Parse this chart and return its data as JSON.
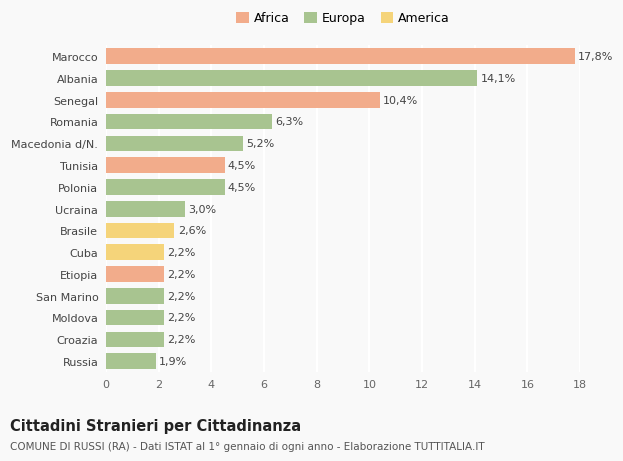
{
  "categories": [
    "Marocco",
    "Albania",
    "Senegal",
    "Romania",
    "Macedonia d/N.",
    "Tunisia",
    "Polonia",
    "Ucraina",
    "Brasile",
    "Cuba",
    "Etiopia",
    "San Marino",
    "Moldova",
    "Croazia",
    "Russia"
  ],
  "values": [
    17.8,
    14.1,
    10.4,
    6.3,
    5.2,
    4.5,
    4.5,
    3.0,
    2.6,
    2.2,
    2.2,
    2.2,
    2.2,
    2.2,
    1.9
  ],
  "labels": [
    "17,8%",
    "14,1%",
    "10,4%",
    "6,3%",
    "5,2%",
    "4,5%",
    "4,5%",
    "3,0%",
    "2,6%",
    "2,2%",
    "2,2%",
    "2,2%",
    "2,2%",
    "2,2%",
    "1,9%"
  ],
  "continent": [
    "Africa",
    "Europa",
    "Africa",
    "Europa",
    "Europa",
    "Africa",
    "Europa",
    "Europa",
    "America",
    "America",
    "Africa",
    "Europa",
    "Europa",
    "Europa",
    "Europa"
  ],
  "colors": {
    "Africa": "#F2AC8B",
    "Europa": "#A8C490",
    "America": "#F5D47A"
  },
  "legend_items": [
    "Africa",
    "Europa",
    "America"
  ],
  "legend_colors": [
    "#F2AC8B",
    "#A8C490",
    "#F5D47A"
  ],
  "xlim": [
    0,
    18
  ],
  "xticks": [
    0,
    2,
    4,
    6,
    8,
    10,
    12,
    14,
    16,
    18
  ],
  "title": "Cittadini Stranieri per Cittadinanza",
  "subtitle": "COMUNE DI RUSSI (RA) - Dati ISTAT al 1° gennaio di ogni anno - Elaborazione TUTTITALIA.IT",
  "background_color": "#f9f9f9",
  "grid_color": "#ffffff",
  "bar_height": 0.72,
  "label_fontsize": 8,
  "tick_fontsize": 8,
  "title_fontsize": 10.5,
  "subtitle_fontsize": 7.5,
  "legend_fontsize": 9
}
